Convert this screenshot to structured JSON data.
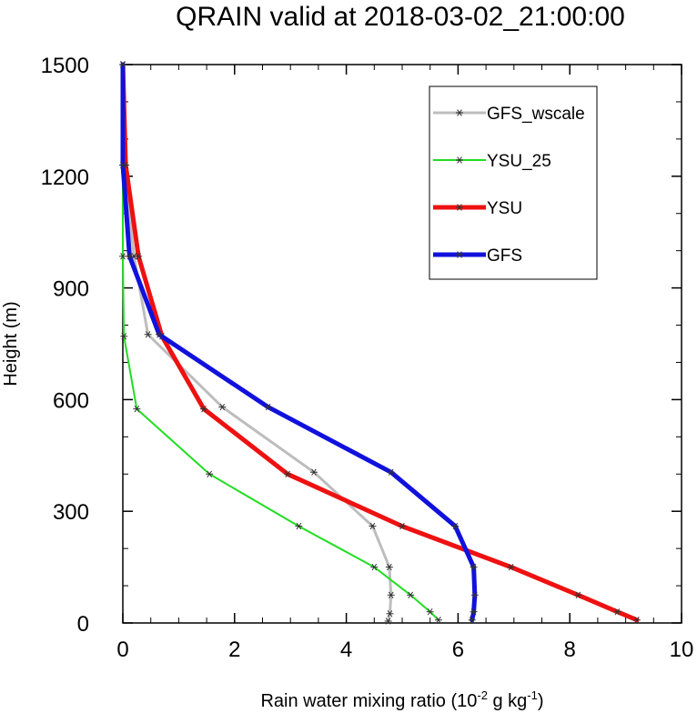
{
  "chart_data": {
    "type": "line",
    "title": "QRAIN valid at 2018-03-02_21:00:00",
    "xlabel": {
      "prefix": "Rain water mixing ratio (10",
      "exp1": "-2",
      "mid": " g kg",
      "exp2": "-1",
      "suffix": ")"
    },
    "ylabel": "Height (m)",
    "xlim": [
      0,
      10
    ],
    "ylim": [
      0,
      1500
    ],
    "x_ticks": [
      0,
      2,
      4,
      6,
      8,
      10
    ],
    "y_ticks": [
      0,
      300,
      600,
      900,
      1200,
      1500
    ],
    "grid": false,
    "legend_position": "top-right",
    "series": [
      {
        "name": "GFS_wscale",
        "color": "#bdbdbd",
        "points": [
          [
            4.75,
            5
          ],
          [
            4.78,
            25
          ],
          [
            4.8,
            75
          ],
          [
            4.77,
            150
          ],
          [
            4.47,
            260
          ],
          [
            3.42,
            405
          ],
          [
            1.78,
            580
          ],
          [
            0.45,
            775
          ],
          [
            0.2,
            985
          ],
          [
            0.02,
            1230
          ],
          [
            0.0,
            1500
          ]
        ]
      },
      {
        "name": "YSU_25",
        "color": "#22dd22",
        "points": [
          [
            5.65,
            8
          ],
          [
            5.5,
            30
          ],
          [
            5.15,
            75
          ],
          [
            4.5,
            150
          ],
          [
            3.15,
            260
          ],
          [
            1.55,
            400
          ],
          [
            0.25,
            575
          ],
          [
            0.02,
            770
          ],
          [
            0.0,
            985
          ],
          [
            0.0,
            1230
          ],
          [
            0.0,
            1500
          ]
        ]
      },
      {
        "name": "YSU",
        "color": "#ee1111",
        "points": [
          [
            9.2,
            8
          ],
          [
            8.85,
            30
          ],
          [
            8.15,
            75
          ],
          [
            6.95,
            150
          ],
          [
            5.0,
            260
          ],
          [
            2.95,
            400
          ],
          [
            1.45,
            575
          ],
          [
            0.7,
            770
          ],
          [
            0.28,
            985
          ],
          [
            0.05,
            1230
          ],
          [
            0.0,
            1500
          ]
        ]
      },
      {
        "name": "GFS",
        "color": "#1111dd",
        "points": [
          [
            6.25,
            8
          ],
          [
            6.28,
            30
          ],
          [
            6.3,
            75
          ],
          [
            6.28,
            150
          ],
          [
            5.95,
            260
          ],
          [
            4.8,
            405
          ],
          [
            2.6,
            580
          ],
          [
            0.65,
            775
          ],
          [
            0.12,
            985
          ],
          [
            0.0,
            1230
          ],
          [
            0.0,
            1500
          ]
        ]
      }
    ]
  }
}
